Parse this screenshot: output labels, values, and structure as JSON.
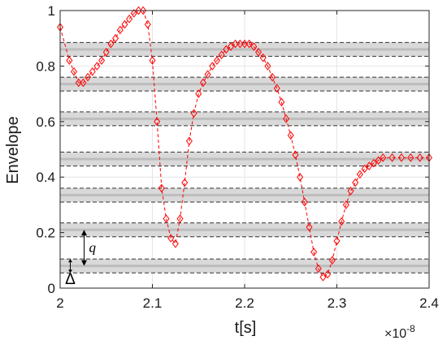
{
  "chart_data": {
    "type": "line",
    "xlabel": "t[s]",
    "ylabel": "Envelope",
    "x_exponent_label": "×10",
    "x_exponent_power": "-8",
    "xlim": [
      2e-08,
      2.4e-08
    ],
    "ylim": [
      0,
      1
    ],
    "x_tick_values": [
      2e-08,
      2.1e-08,
      2.2e-08,
      2.3e-08,
      2.4e-08
    ],
    "x_tick_labels": [
      "2",
      "2.1",
      "2.2",
      "2.3",
      "2.4"
    ],
    "y_tick_values": [
      0,
      0.2,
      0.4,
      0.6,
      0.8,
      1
    ],
    "y_tick_labels": [
      "0",
      "0.2",
      "0.4",
      "0.6",
      "0.8",
      "1"
    ],
    "grid": true,
    "series": [
      {
        "color": "#ff0000",
        "line_style": "dashed",
        "marker": "diamond",
        "x": [
          2e-08,
          2.01e-08,
          2.015e-08,
          2.02e-08,
          2.025e-08,
          2.03e-08,
          2.035e-08,
          2.04e-08,
          2.045e-08,
          2.05e-08,
          2.055e-08,
          2.06e-08,
          2.065e-08,
          2.07e-08,
          2.075e-08,
          2.08e-08,
          2.085e-08,
          2.09e-08,
          2.095e-08,
          2.1e-08,
          2.105e-08,
          2.11e-08,
          2.115e-08,
          2.12e-08,
          2.125e-08,
          2.13e-08,
          2.135e-08,
          2.14e-08,
          2.145e-08,
          2.15e-08,
          2.155e-08,
          2.16e-08,
          2.165e-08,
          2.17e-08,
          2.175e-08,
          2.18e-08,
          2.185e-08,
          2.19e-08,
          2.195e-08,
          2.2e-08,
          2.205e-08,
          2.21e-08,
          2.215e-08,
          2.22e-08,
          2.225e-08,
          2.23e-08,
          2.235e-08,
          2.24e-08,
          2.245e-08,
          2.25e-08,
          2.255e-08,
          2.26e-08,
          2.265e-08,
          2.27e-08,
          2.275e-08,
          2.28e-08,
          2.285e-08,
          2.29e-08,
          2.295e-08,
          2.3e-08,
          2.305e-08,
          2.31e-08,
          2.315e-08,
          2.32e-08,
          2.325e-08,
          2.33e-08,
          2.335e-08,
          2.34e-08,
          2.345e-08,
          2.35e-08,
          2.36e-08,
          2.37e-08,
          2.38e-08,
          2.39e-08,
          2.4e-08
        ],
        "y": [
          0.94,
          0.82,
          0.78,
          0.74,
          0.74,
          0.76,
          0.78,
          0.8,
          0.82,
          0.85,
          0.88,
          0.9,
          0.93,
          0.95,
          0.97,
          0.99,
          1.0,
          1.0,
          0.95,
          0.82,
          0.6,
          0.36,
          0.25,
          0.18,
          0.16,
          0.25,
          0.38,
          0.53,
          0.63,
          0.7,
          0.74,
          0.77,
          0.8,
          0.82,
          0.84,
          0.86,
          0.87,
          0.88,
          0.88,
          0.88,
          0.88,
          0.87,
          0.85,
          0.83,
          0.8,
          0.76,
          0.72,
          0.67,
          0.61,
          0.55,
          0.48,
          0.4,
          0.31,
          0.22,
          0.13,
          0.07,
          0.04,
          0.05,
          0.1,
          0.17,
          0.24,
          0.3,
          0.35,
          0.38,
          0.41,
          0.43,
          0.44,
          0.45,
          0.46,
          0.47,
          0.47,
          0.47,
          0.47,
          0.47,
          0.47
        ]
      }
    ],
    "quantization_levels": {
      "centers": [
        0.08,
        0.21,
        0.335,
        0.465,
        0.61,
        0.735,
        0.86
      ],
      "half_width": 0.025,
      "band_color": "#d9d9d9",
      "dashed_color": "#333333"
    },
    "annotations": [
      {
        "text": "q",
        "x": 2.026e-08,
        "y_from": 0.08,
        "y_to": 0.21
      },
      {
        "text": "Δ",
        "x": 2.011e-08,
        "y_from": 0.055,
        "y_to": 0.105
      }
    ]
  }
}
